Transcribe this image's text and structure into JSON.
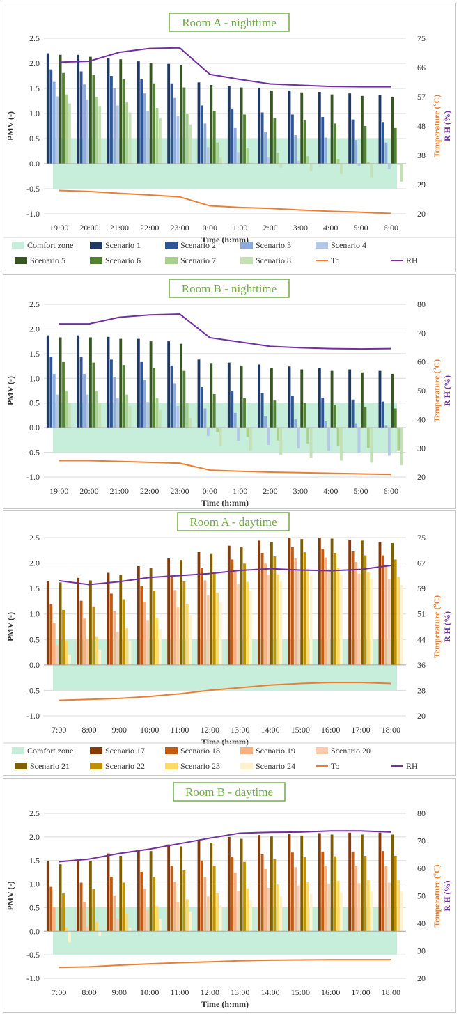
{
  "colors": {
    "comfort": "#c7eedb",
    "to": "#ed7d31",
    "rh": "#7030a0",
    "title": "#70ad47",
    "sc1": "#1f3864",
    "sc2": "#2e5597",
    "sc3": "#8eaadb",
    "sc4": "#b4c7e7",
    "sc5": "#375623",
    "sc6": "#548235",
    "sc7": "#a9d18e",
    "sc8": "#c5e0b4",
    "sc17": "#843c0c",
    "sc18": "#c55a11",
    "sc19": "#f4b183",
    "sc20": "#f8cbad",
    "sc21": "#7f6000",
    "sc22": "#bf9000",
    "sc23": "#ffd966",
    "sc24": "#fff2cc"
  },
  "chart_data": [
    {
      "type": "bar",
      "title": "Room A - nighttime",
      "xlabel": "Time (h:mm)",
      "ylabel": "PMV (-)",
      "ylabel_right_temp": "Temperature (ºC)",
      "ylabel_right_rh": "R H (%)",
      "ylim": [
        -1.0,
        2.5
      ],
      "yticks": [
        "2.5",
        "2.0",
        "1.5",
        "1.0",
        "0.5",
        "0.0",
        "-0.5",
        "-1.0"
      ],
      "y2lim": [
        20,
        75
      ],
      "y2ticks": [
        "75",
        "66",
        "57",
        "48",
        "38",
        "29",
        "20"
      ],
      "categories": [
        "19:00",
        "20:00",
        "21:00",
        "22:00",
        "23:00",
        "0:00",
        "1:00",
        "2:00",
        "3:00",
        "4:00",
        "5:00",
        "6:00"
      ],
      "comfort_zone": [
        -0.5,
        0.5
      ],
      "series": [
        {
          "name": "Scenario 1",
          "values": [
            2.2,
            2.17,
            2.11,
            2.04,
            1.99,
            1.62,
            1.55,
            1.5,
            1.46,
            1.43,
            1.4,
            1.37
          ]
        },
        {
          "name": "Scenario 2",
          "values": [
            1.88,
            1.84,
            1.75,
            1.68,
            1.6,
            1.16,
            1.1,
            1.02,
            0.98,
            0.93,
            0.88,
            0.83
          ]
        },
        {
          "name": "Scenario 3",
          "values": [
            1.63,
            1.58,
            1.5,
            1.4,
            1.31,
            0.8,
            0.71,
            0.63,
            0.57,
            0.52,
            0.47,
            0.42
          ]
        },
        {
          "name": "Scenario 4",
          "values": [
            1.34,
            1.28,
            1.16,
            1.05,
            0.95,
            0.33,
            0.23,
            0.13,
            0.06,
            0.0,
            -0.05,
            -0.11
          ]
        },
        {
          "name": "Scenario 5",
          "values": [
            2.17,
            2.13,
            2.08,
            2.01,
            1.96,
            1.57,
            1.52,
            1.46,
            1.42,
            1.38,
            1.35,
            1.32
          ]
        },
        {
          "name": "Scenario 6",
          "values": [
            1.81,
            1.77,
            1.68,
            1.6,
            1.52,
            1.05,
            0.98,
            0.91,
            0.86,
            0.8,
            0.75,
            0.71
          ]
        },
        {
          "name": "Scenario 7",
          "values": [
            1.38,
            1.33,
            1.22,
            1.11,
            1.0,
            0.42,
            0.32,
            0.22,
            0.15,
            0.09,
            0.04,
            -0.02
          ]
        },
        {
          "name": "Scenario 8",
          "values": [
            1.2,
            1.15,
            1.02,
            0.9,
            0.78,
            0.12,
            0.02,
            -0.08,
            -0.15,
            -0.21,
            -0.27,
            -0.36
          ]
        }
      ],
      "to": [
        27.3,
        27.0,
        26.4,
        25.9,
        25.3,
        22.5,
        22.0,
        21.7,
        21.2,
        20.8,
        20.5,
        20.1
      ],
      "rh": [
        67.5,
        67.8,
        70.6,
        71.8,
        72.0,
        63.7,
        62.1,
        60.7,
        60.3,
        59.9,
        59.8,
        59.8
      ],
      "legend": [
        "Comfort zone",
        "Scenario 1",
        "Scenario 2",
        "Scenario 3",
        "Scenario 4",
        "Scenario 5",
        "Scenario 6",
        "Scenario 7",
        "Scenario 8",
        "To",
        "RH"
      ]
    },
    {
      "type": "bar",
      "title": "Room B - nighttime",
      "xlabel": "Time (h:mm)",
      "ylabel": "PMV (-)",
      "ylabel_right_temp": "Temperature (ºC)",
      "ylabel_right_rh": "R H (%)",
      "ylim": [
        -1.0,
        2.5
      ],
      "yticks": [
        "2.5",
        "2.0",
        "1.5",
        "1.0",
        "0.5",
        "0.0",
        "-0.5",
        "-1.0"
      ],
      "y2lim": [
        20,
        80
      ],
      "y2ticks": [
        "80",
        "70",
        "60",
        "50",
        "40",
        "30",
        "20"
      ],
      "categories": [
        "19:00",
        "20:00",
        "21:00",
        "22:00",
        "23:00",
        "0:00",
        "1:00",
        "2:00",
        "3:00",
        "4:00",
        "5:00",
        "6:00"
      ],
      "comfort_zone": [
        -0.5,
        0.5
      ],
      "series": [
        {
          "name": "Scenario 1",
          "values": [
            1.87,
            1.87,
            1.84,
            1.8,
            1.75,
            1.38,
            1.32,
            1.28,
            1.24,
            1.21,
            1.18,
            1.15
          ]
        },
        {
          "name": "Scenario 2",
          "values": [
            1.44,
            1.43,
            1.38,
            1.33,
            1.26,
            0.82,
            0.75,
            0.7,
            0.65,
            0.61,
            0.57,
            0.53
          ]
        },
        {
          "name": "Scenario 3",
          "values": [
            1.09,
            1.09,
            1.03,
            0.97,
            0.9,
            0.39,
            0.3,
            0.23,
            0.17,
            0.13,
            0.08,
            0.04
          ]
        },
        {
          "name": "Scenario 4",
          "values": [
            0.67,
            0.67,
            0.6,
            0.52,
            0.44,
            -0.17,
            -0.27,
            -0.35,
            -0.42,
            -0.47,
            -0.52,
            -0.57
          ]
        },
        {
          "name": "Scenario 5",
          "values": [
            1.83,
            1.83,
            1.8,
            1.75,
            1.7,
            1.31,
            1.26,
            1.21,
            1.18,
            1.15,
            1.12,
            1.09
          ]
        },
        {
          "name": "Scenario 6",
          "values": [
            1.33,
            1.32,
            1.27,
            1.21,
            1.15,
            0.68,
            0.6,
            0.55,
            0.5,
            0.46,
            0.42,
            0.39
          ]
        },
        {
          "name": "Scenario 7",
          "values": [
            0.74,
            0.74,
            0.67,
            0.6,
            0.5,
            -0.09,
            -0.19,
            -0.26,
            -0.32,
            -0.37,
            -0.41,
            -0.46
          ]
        },
        {
          "name": "Scenario 8",
          "values": [
            0.5,
            0.5,
            0.44,
            0.36,
            0.2,
            -0.37,
            -0.47,
            -0.55,
            -0.61,
            -0.67,
            -0.71,
            -0.76
          ]
        }
      ],
      "to": [
        25.7,
        25.7,
        25.4,
        25.1,
        24.8,
        22.4,
        22.0,
        21.7,
        21.5,
        21.3,
        21.1,
        20.9
      ],
      "rh": [
        73.2,
        73.2,
        75.5,
        76.3,
        76.6,
        68.4,
        66.9,
        65.4,
        64.9,
        64.6,
        64.5,
        64.6
      ],
      "legend": []
    },
    {
      "type": "bar",
      "title": "Room A - daytime",
      "xlabel": "Time (h:mm)",
      "ylabel": "PMV (-)",
      "ylabel_right_temp": "Temperature (ºC)",
      "ylabel_right_rh": "R H (%)",
      "ylim": [
        -1.0,
        2.5
      ],
      "yticks": [
        "2.5",
        "2.0",
        "1.5",
        "1.0",
        "0.5",
        "0.0",
        "-0.5",
        "-1.0"
      ],
      "y2lim": [
        20,
        75
      ],
      "y2ticks": [
        "75",
        "67",
        "59",
        "51",
        "44",
        "36",
        "28",
        "20"
      ],
      "categories": [
        "7:00",
        "8:00",
        "9:00",
        "10:00",
        "11:00",
        "12:00",
        "13:00",
        "14:00",
        "15:00",
        "16:00",
        "17:00",
        "18:00"
      ],
      "comfort_zone": [
        -0.5,
        0.5
      ],
      "series": [
        {
          "name": "Scenario 17",
          "values": [
            1.65,
            1.71,
            1.81,
            1.94,
            2.09,
            2.22,
            2.34,
            2.44,
            2.5,
            2.5,
            2.46,
            2.41
          ]
        },
        {
          "name": "Scenario 18",
          "values": [
            1.19,
            1.26,
            1.4,
            1.55,
            1.73,
            1.91,
            2.07,
            2.2,
            2.31,
            2.28,
            2.24,
            2.15
          ]
        },
        {
          "name": "Scenario 19",
          "values": [
            0.83,
            0.91,
            1.06,
            1.24,
            1.47,
            1.66,
            1.83,
            1.99,
            2.09,
            2.11,
            2.02,
            1.94
          ]
        },
        {
          "name": "Scenario 20",
          "values": [
            0.39,
            0.51,
            0.65,
            0.87,
            1.13,
            1.37,
            1.59,
            1.77,
            1.87,
            1.88,
            1.79,
            1.68
          ]
        },
        {
          "name": "Scenario 21",
          "values": [
            1.62,
            1.66,
            1.77,
            1.9,
            2.06,
            2.19,
            2.32,
            2.41,
            2.47,
            2.48,
            2.44,
            2.39
          ]
        },
        {
          "name": "Scenario 22",
          "values": [
            1.08,
            1.15,
            1.29,
            1.46,
            1.64,
            1.83,
            1.99,
            2.13,
            2.21,
            2.2,
            2.15,
            2.07
          ]
        },
        {
          "name": "Scenario 23",
          "values": [
            0.47,
            0.55,
            0.72,
            0.93,
            1.2,
            1.42,
            1.63,
            1.78,
            1.88,
            1.9,
            1.82,
            1.73
          ]
        },
        {
          "name": "Scenario 24",
          "values": [
            0.2,
            0.3,
            0.48,
            0.71,
            0.98,
            1.23,
            1.46,
            1.64,
            1.76,
            1.77,
            1.69,
            1.57
          ]
        }
      ],
      "to": [
        24.8,
        25.1,
        25.4,
        26.0,
        26.8,
        27.9,
        28.7,
        29.5,
        30.0,
        30.3,
        30.3,
        30.0
      ],
      "rh": [
        61.7,
        60.5,
        61.4,
        62.7,
        63.3,
        63.9,
        64.9,
        65.4,
        65.0,
        64.8,
        65.2,
        66.4
      ],
      "legend": [
        "Comfort zone",
        "Scenario 17",
        "Scenario 18",
        "Scenario 19",
        "Scenario 20",
        "Scenario 21",
        "Scenario 22",
        "Scenario 23",
        "Scenario 24",
        "To",
        "RH"
      ]
    },
    {
      "type": "bar",
      "title": "Room B - daytime",
      "xlabel": "Time (h:mm)",
      "ylabel": "PMV (-)",
      "ylabel_right_temp": "Temperature (ºC)",
      "ylabel_right_rh": "R H (%)",
      "ylim": [
        -1.0,
        2.5
      ],
      "yticks": [
        "2.5",
        "2.0",
        "1.5",
        "1.0",
        "0.5",
        "0.0",
        "-0.5",
        "-1.0"
      ],
      "y2lim": [
        20,
        80
      ],
      "y2ticks": [
        "80",
        "70",
        "60",
        "50",
        "40",
        "30",
        "20"
      ],
      "categories": [
        "7:00",
        "8:00",
        "9:00",
        "10:00",
        "11:00",
        "12:00",
        "13:00",
        "14:00",
        "15:00",
        "16:00",
        "17:00",
        "18:00"
      ],
      "comfort_zone": [
        -0.5,
        0.5
      ],
      "series": [
        {
          "name": "Scenario 17",
          "values": [
            1.48,
            1.54,
            1.65,
            1.73,
            1.84,
            1.93,
            2.0,
            2.04,
            2.07,
            2.08,
            2.09,
            2.09
          ]
        },
        {
          "name": "Scenario 18",
          "values": [
            0.94,
            1.03,
            1.15,
            1.26,
            1.39,
            1.5,
            1.58,
            1.63,
            1.67,
            1.69,
            1.69,
            1.7
          ]
        },
        {
          "name": "Scenario 19",
          "values": [
            0.52,
            0.62,
            0.76,
            0.9,
            1.04,
            1.15,
            1.24,
            1.32,
            1.36,
            1.39,
            1.39,
            1.39
          ]
        },
        {
          "name": "Scenario 20",
          "values": [
            0.02,
            0.1,
            0.27,
            0.45,
            0.61,
            0.74,
            0.85,
            0.92,
            0.97,
            1.0,
            1.02,
            1.03
          ]
        },
        {
          "name": "Scenario 21",
          "values": [
            1.42,
            1.49,
            1.6,
            1.7,
            1.8,
            1.88,
            1.96,
            2.01,
            2.03,
            2.05,
            2.05,
            2.05
          ]
        },
        {
          "name": "Scenario 22",
          "values": [
            0.8,
            0.9,
            1.03,
            1.15,
            1.29,
            1.39,
            1.47,
            1.53,
            1.57,
            1.59,
            1.6,
            1.6
          ]
        },
        {
          "name": "Scenario 23",
          "values": [
            0.08,
            0.2,
            0.37,
            0.53,
            0.68,
            0.81,
            0.91,
            0.99,
            1.04,
            1.07,
            1.08,
            1.08
          ]
        },
        {
          "name": "Scenario 24",
          "values": [
            -0.24,
            -0.1,
            0.08,
            0.26,
            0.42,
            0.55,
            0.66,
            0.74,
            0.79,
            0.82,
            0.84,
            0.84
          ]
        }
      ],
      "to": [
        24.0,
        24.2,
        24.8,
        25.3,
        25.7,
        26.0,
        26.4,
        26.6,
        26.7,
        26.8,
        26.8,
        26.8
      ],
      "rh": [
        62.4,
        63.4,
        65.4,
        67.0,
        69.0,
        71.0,
        72.8,
        73.1,
        73.2,
        73.6,
        73.6,
        73.2
      ],
      "legend": []
    }
  ]
}
